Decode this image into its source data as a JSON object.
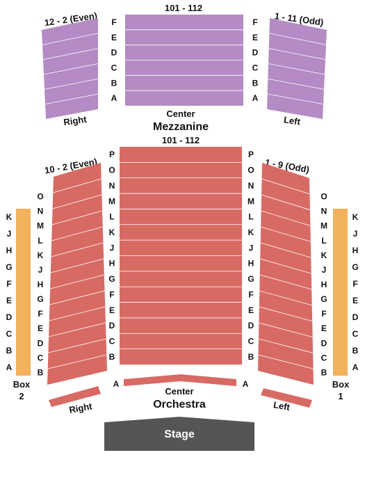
{
  "colors": {
    "mezzanine": "#b48bc4",
    "orchestra": "#d86a64",
    "box": "#f2b25c",
    "stage": "#555555",
    "row_line": "#ffffff"
  },
  "mezzanine": {
    "name": "Mezzanine",
    "center_label": "Center",
    "center_seats": "101 - 112",
    "right_label": "Right",
    "right_seats": "12 - 2 (Even)",
    "left_label": "Left",
    "left_seats": "1 - 11 (Odd)",
    "rows": [
      "F",
      "E",
      "D",
      "C",
      "B",
      "A"
    ]
  },
  "orchestra": {
    "name": "Orchestra",
    "center_label": "Center",
    "center_seats": "101 - 112",
    "center_rows": [
      "P",
      "O",
      "N",
      "M",
      "L",
      "K",
      "J",
      "H",
      "G",
      "F",
      "E",
      "D",
      "C",
      "B"
    ],
    "front_row": "A",
    "right_label": "Right",
    "right_seats": "10 - 2 (Even)",
    "left_label": "Left",
    "left_seats": "1 - 9 (Odd)",
    "side_rows": [
      "O",
      "N",
      "M",
      "L",
      "K",
      "J",
      "H",
      "G",
      "F",
      "E",
      "D",
      "C",
      "B"
    ]
  },
  "boxes": {
    "box2_label_line1": "Box",
    "box2_label_line2": "2",
    "box1_label_line1": "Box",
    "box1_label_line2": "1",
    "rows": [
      "K",
      "J",
      "H",
      "G",
      "F",
      "E",
      "D",
      "C",
      "B",
      "A"
    ]
  },
  "stage": {
    "label": "Stage"
  }
}
